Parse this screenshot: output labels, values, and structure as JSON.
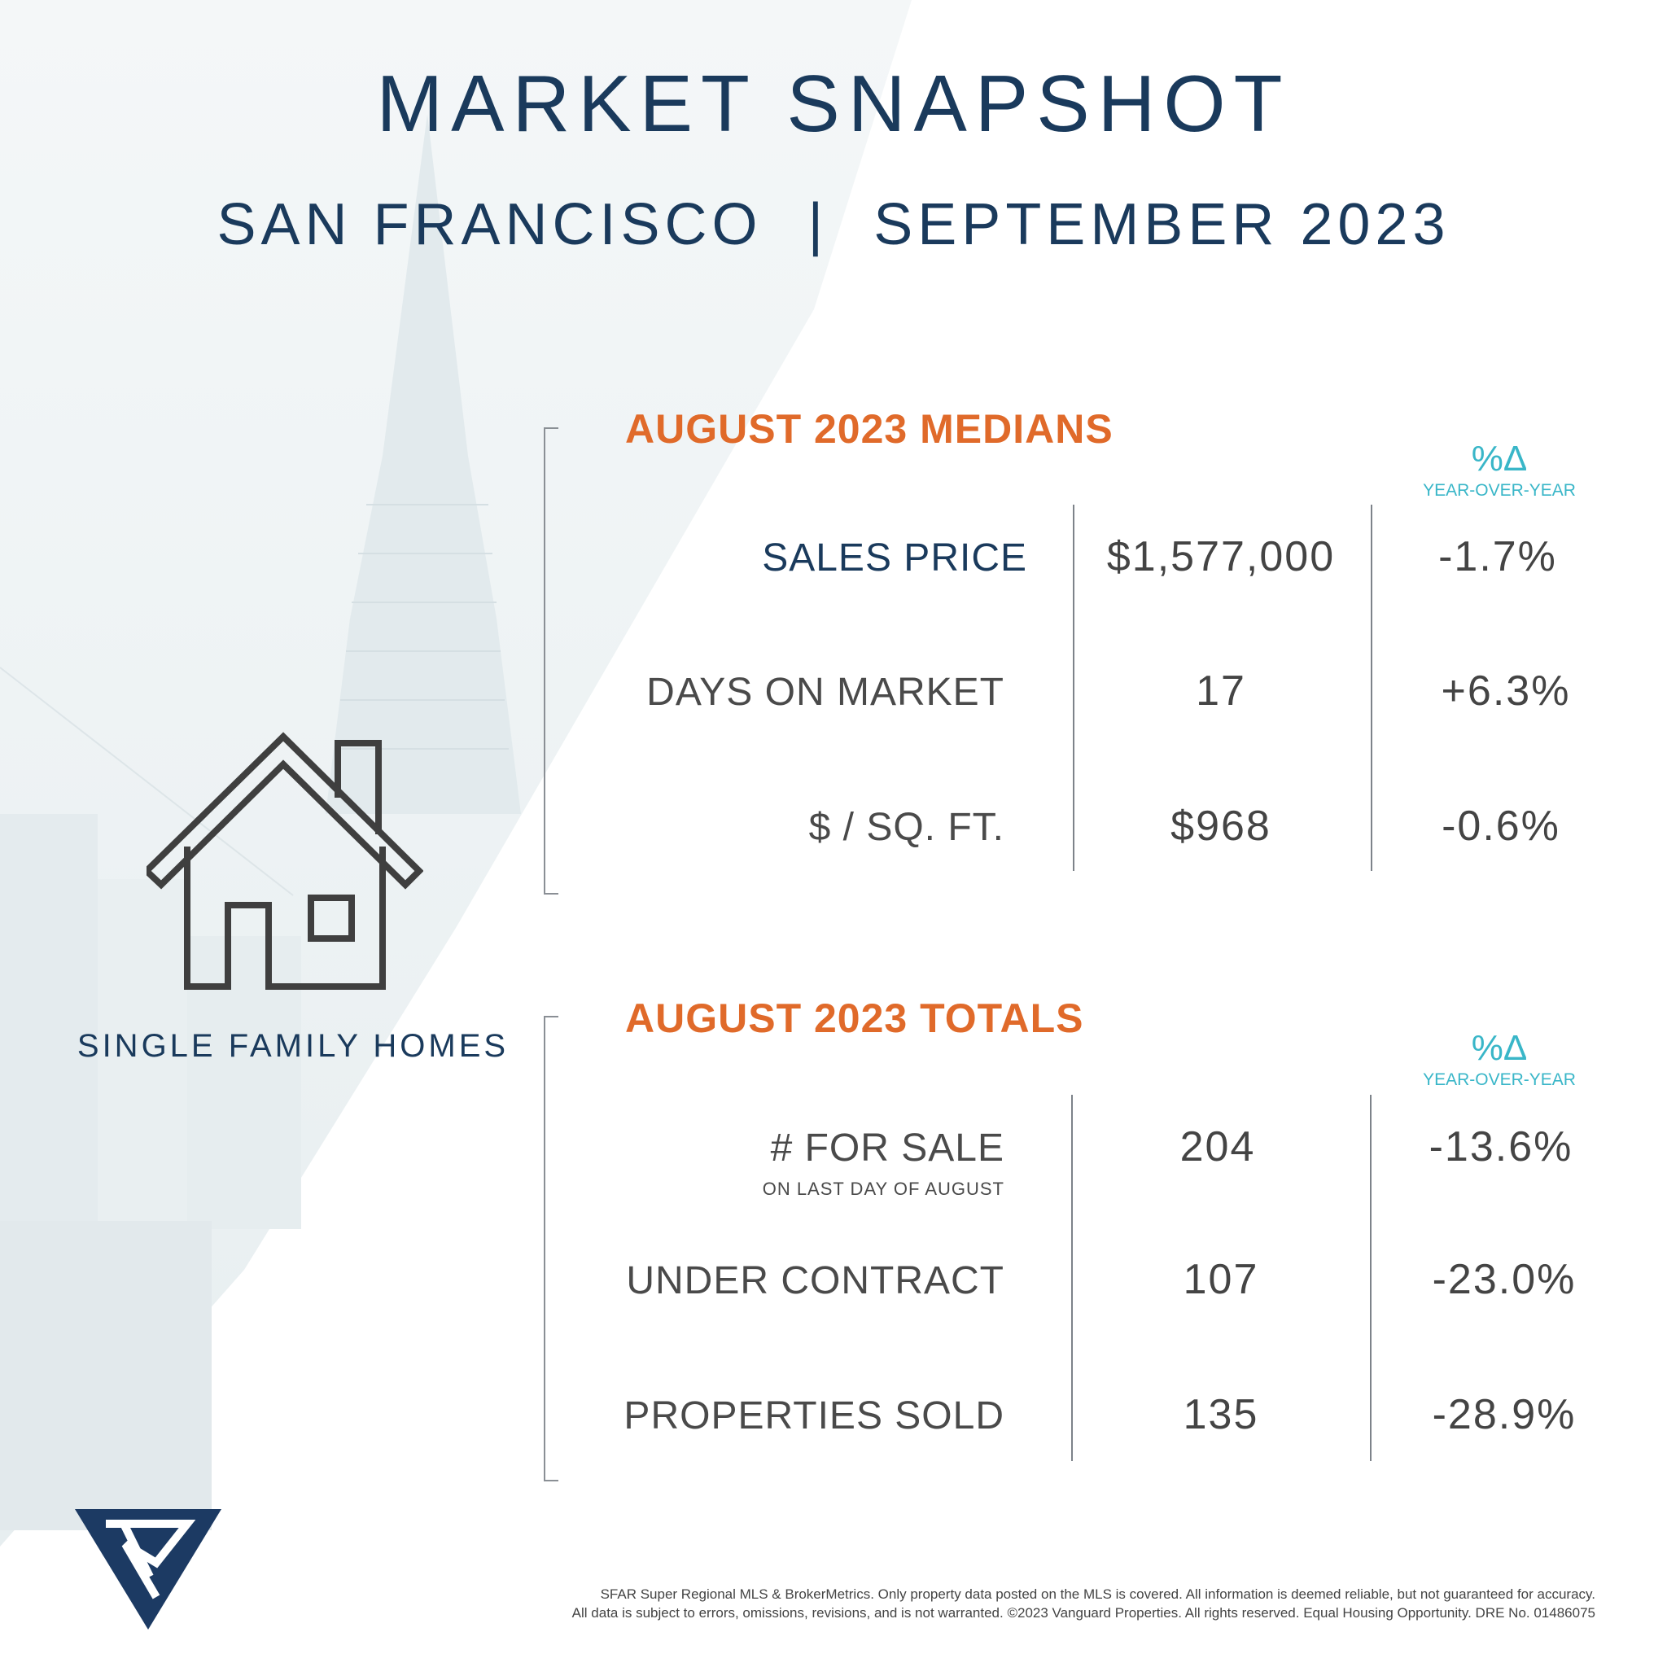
{
  "header": {
    "title": "MARKET SNAPSHOT",
    "location": "SAN FRANCISCO",
    "separator": "|",
    "period": "SEPTEMBER 2023"
  },
  "property_type": {
    "label": "SINGLE FAMILY HOMES",
    "icon": "house-icon"
  },
  "medians": {
    "heading": "AUGUST 2023 MEDIANS",
    "change_symbol": "%Δ",
    "change_caption": "YEAR-OVER-YEAR",
    "rows": [
      {
        "label": "SALES PRICE",
        "value": "$1,577,000",
        "change": "-1.7%"
      },
      {
        "label": "DAYS ON MARKET",
        "value": "17",
        "change": "+6.3%"
      },
      {
        "label": "$ / SQ. FT.",
        "value": "$968",
        "change": "-0.6%"
      }
    ]
  },
  "totals": {
    "heading": "AUGUST 2023 TOTALS",
    "change_symbol": "%Δ",
    "change_caption": "YEAR-OVER-YEAR",
    "rows": [
      {
        "label": "# FOR SALE",
        "sublabel": "ON LAST DAY OF AUGUST",
        "value": "204",
        "change": "-13.6%"
      },
      {
        "label": "UNDER CONTRACT",
        "value": "107",
        "change": "-23.0%"
      },
      {
        "label": "PROPERTIES SOLD",
        "value": "135",
        "change": "-28.9%"
      }
    ]
  },
  "footer": {
    "line1": "SFAR Super Regional MLS & BrokerMetrics. Only property data posted on the MLS is covered. All information is deemed reliable, but not guaranteed for accuracy.",
    "line2": "All data is subject to errors, omissions, revisions, and is not warranted. ©2023 Vanguard Properties. All rights reserved. Equal Housing Opportunity. DRE No. 01486075"
  },
  "colors": {
    "navy": "#1a3a5c",
    "orange": "#e06a2a",
    "teal": "#39b6c8",
    "gray_text": "#444444"
  },
  "logo": {
    "icon": "vanguard-logo"
  }
}
